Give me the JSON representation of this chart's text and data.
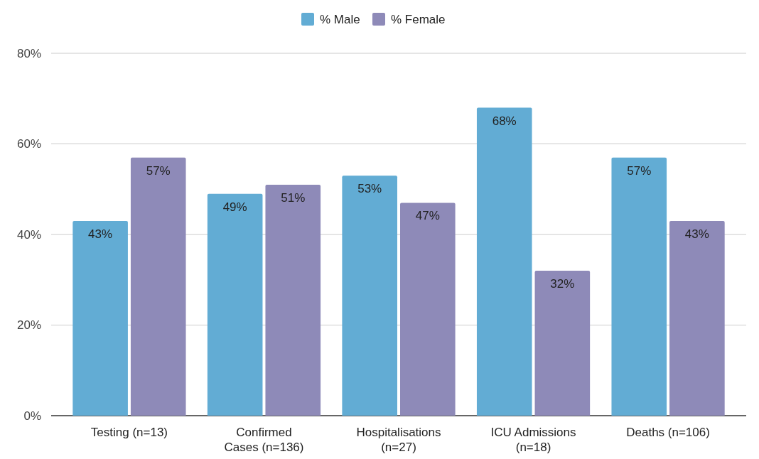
{
  "chart_data": {
    "type": "bar",
    "categories": [
      "Testing (n=13)",
      "Confirmed\nCases (n=136)",
      "Hospitalisations\n(n=27)",
      "ICU Admissions\n(n=18)",
      "Deaths (n=106)"
    ],
    "series": [
      {
        "name": "% Male",
        "color": "#62acd4",
        "values": [
          43,
          49,
          53,
          68,
          57
        ],
        "value_labels": [
          "43%",
          "49%",
          "53%",
          "68%",
          "57%"
        ]
      },
      {
        "name": "% Female",
        "color": "#8e8ab8",
        "values": [
          57,
          51,
          47,
          32,
          43
        ],
        "value_labels": [
          "57%",
          "51%",
          "47%",
          "32%",
          "43%"
        ]
      }
    ],
    "ylim": [
      0,
      80
    ],
    "yticks": [
      {
        "value": 0,
        "label": "0%"
      },
      {
        "value": 20,
        "label": "20%"
      },
      {
        "value": 40,
        "label": "40%"
      },
      {
        "value": 60,
        "label": "60%"
      },
      {
        "value": 80,
        "label": "80%"
      }
    ],
    "grid": "y",
    "legend": "top"
  }
}
